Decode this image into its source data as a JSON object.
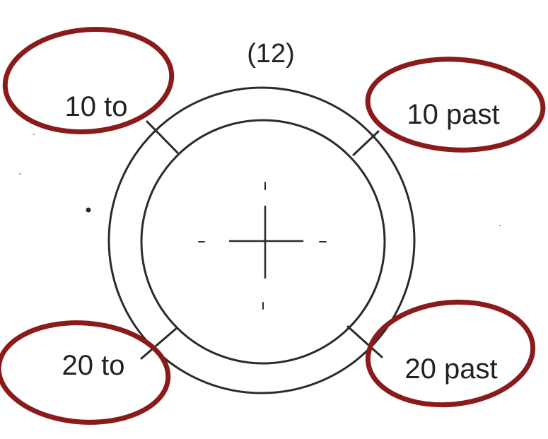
{
  "diagram": {
    "top_label": "(12)",
    "labels": {
      "ten_to": "10 to",
      "ten_past": "10 past",
      "twenty_to": "20 to",
      "twenty_past": "20 past"
    },
    "colors": {
      "ink": "#2b2b2b",
      "highlight": "#8b1a1a",
      "background": "#ffffff"
    }
  }
}
